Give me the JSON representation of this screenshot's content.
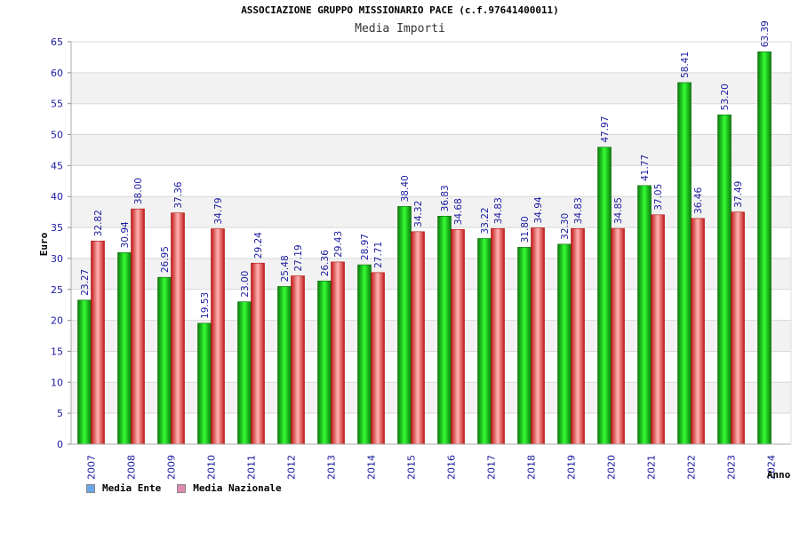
{
  "chart_data": {
    "type": "bar",
    "title": "ASSOCIAZIONE GRUPPO MISSIONARIO PACE (c.f.97641400011)",
    "subtitle": "Media Importi",
    "xlabel": "Anno",
    "ylabel": "Euro",
    "ylim": [
      0,
      65
    ],
    "yticks": [
      0,
      5,
      10,
      15,
      20,
      25,
      30,
      35,
      40,
      45,
      50,
      55,
      60,
      65
    ],
    "grid": true,
    "legend_position": "bottom-left",
    "categories": [
      "2007",
      "2008",
      "2009",
      "2010",
      "2011",
      "2012",
      "2013",
      "2014",
      "2015",
      "2016",
      "2017",
      "2018",
      "2019",
      "2020",
      "2021",
      "2022",
      "2023",
      "2024"
    ],
    "series": [
      {
        "name": "Media Ente",
        "color": "#1fbf1f",
        "legend_color": "#6aa6e8",
        "values": [
          23.27,
          30.94,
          26.95,
          19.53,
          23.0,
          25.48,
          26.36,
          28.97,
          38.4,
          36.83,
          33.22,
          31.8,
          32.3,
          47.97,
          41.77,
          58.41,
          53.2,
          63.39
        ],
        "labels": [
          "23.27",
          "30.94",
          "26.95",
          "19.53",
          "23.00",
          "25.48",
          "26.36",
          "28.97",
          "38.40",
          "36.83",
          "33.22",
          "31.80",
          "32.30",
          "47.97",
          "41.77",
          "58.41",
          "53.20",
          "63.39"
        ]
      },
      {
        "name": "Media Nazionale",
        "color": "#e83a3a",
        "legend_color": "#e08ab0",
        "values": [
          32.82,
          38.0,
          37.36,
          34.79,
          29.24,
          27.19,
          29.43,
          27.71,
          34.32,
          34.68,
          34.83,
          34.94,
          34.83,
          34.85,
          37.05,
          36.46,
          37.49,
          null
        ],
        "labels": [
          "32.82",
          "38.00",
          "37.36",
          "34.79",
          "29.24",
          "27.19",
          "29.43",
          "27.71",
          "34.32",
          "34.68",
          "34.83",
          "34.94",
          "34.83",
          "34.85",
          "37.05",
          "36.46",
          "37.49",
          ""
        ]
      }
    ]
  }
}
